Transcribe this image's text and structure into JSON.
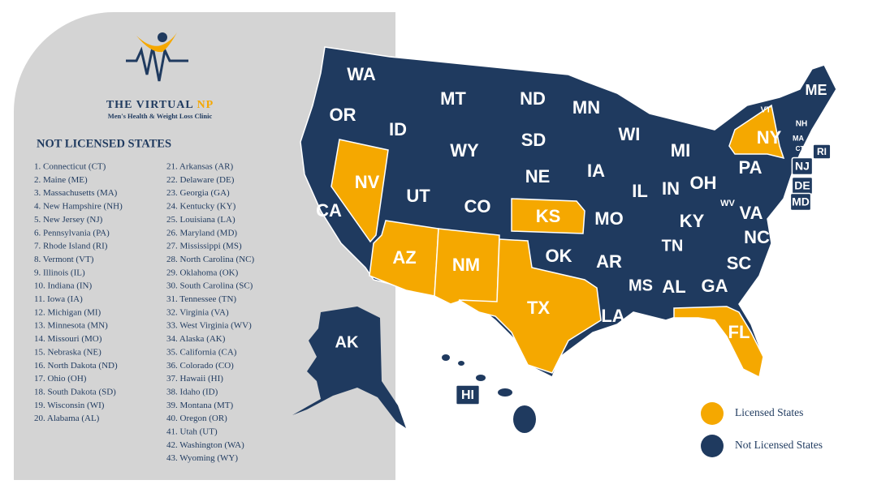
{
  "logo": {
    "title": "THE VIRTUAL",
    "title_accent": "NP",
    "subtitle": "Men's Health & Weight Loss Clinic"
  },
  "list": {
    "heading": "NOT LICENSED STATES",
    "items": [
      "1. Connecticut (CT)",
      "2. Maine (ME)",
      "3. Massachusetts (MA)",
      "4. New Hampshire (NH)",
      "5. New Jersey (NJ)",
      "6. Pennsylvania (PA)",
      "7. Rhode Island (RI)",
      "8. Vermont (VT)",
      "9. Illinois (IL)",
      "10. Indiana (IN)",
      "11. Iowa (IA)",
      "12. Michigan (MI)",
      "13. Minnesota (MN)",
      "14. Missouri (MO)",
      "15. Nebraska (NE)",
      "16. North Dakota (ND)",
      "17. Ohio (OH)",
      "18. South Dakota (SD)",
      "19. Wisconsin (WI)",
      "20. Alabama (AL)",
      "21. Arkansas (AR)",
      "22. Delaware (DE)",
      "23. Georgia (GA)",
      "24. Kentucky (KY)",
      "25. Louisiana (LA)",
      "26. Maryland (MD)",
      "27. Mississippi (MS)",
      "28. North Carolina (NC)",
      "29. Oklahoma (OK)",
      "30. South Carolina (SC)",
      "31. Tennessee (TN)",
      "32. Virginia (VA)",
      "33. West Virginia (WV)",
      "34. Alaska (AK)",
      "35. California (CA)",
      "36. Colorado (CO)",
      "37. Hawaii (HI)",
      "38. Idaho (ID)",
      "39. Montana (MT)",
      "40. Oregon (OR)",
      "41. Utah (UT)",
      "42. Washington (WA)",
      "43. Wyoming (WY)"
    ]
  },
  "map": {
    "states": [
      {
        "label": "WA",
        "licensed": false
      },
      {
        "label": "OR",
        "licensed": false
      },
      {
        "label": "CA",
        "licensed": false
      },
      {
        "label": "NV",
        "licensed": true
      },
      {
        "label": "ID",
        "licensed": false
      },
      {
        "label": "MT",
        "licensed": false
      },
      {
        "label": "WY",
        "licensed": false
      },
      {
        "label": "UT",
        "licensed": false
      },
      {
        "label": "CO",
        "licensed": false
      },
      {
        "label": "AZ",
        "licensed": true
      },
      {
        "label": "NM",
        "licensed": true
      },
      {
        "label": "ND",
        "licensed": false
      },
      {
        "label": "SD",
        "licensed": false
      },
      {
        "label": "NE",
        "licensed": false
      },
      {
        "label": "KS",
        "licensed": true
      },
      {
        "label": "OK",
        "licensed": false
      },
      {
        "label": "TX",
        "licensed": true
      },
      {
        "label": "MN",
        "licensed": false
      },
      {
        "label": "IA",
        "licensed": false
      },
      {
        "label": "MO",
        "licensed": false
      },
      {
        "label": "AR",
        "licensed": false
      },
      {
        "label": "LA",
        "licensed": false
      },
      {
        "label": "WI",
        "licensed": false
      },
      {
        "label": "IL",
        "licensed": false
      },
      {
        "label": "MI",
        "licensed": false
      },
      {
        "label": "IN",
        "licensed": false
      },
      {
        "label": "OH",
        "licensed": false
      },
      {
        "label": "KY",
        "licensed": false
      },
      {
        "label": "TN",
        "licensed": false
      },
      {
        "label": "MS",
        "licensed": false
      },
      {
        "label": "AL",
        "licensed": false
      },
      {
        "label": "GA",
        "licensed": false
      },
      {
        "label": "FL",
        "licensed": true
      },
      {
        "label": "SC",
        "licensed": false
      },
      {
        "label": "NC",
        "licensed": false
      },
      {
        "label": "VA",
        "licensed": false
      },
      {
        "label": "WV",
        "licensed": false
      },
      {
        "label": "PA",
        "licensed": false
      },
      {
        "label": "NY",
        "licensed": true
      },
      {
        "label": "VT",
        "licensed": false
      },
      {
        "label": "NH",
        "licensed": false
      },
      {
        "label": "ME",
        "licensed": false
      },
      {
        "label": "MA",
        "licensed": false
      },
      {
        "label": "CT",
        "licensed": false
      },
      {
        "label": "RI",
        "licensed": false
      },
      {
        "label": "NJ",
        "licensed": false
      },
      {
        "label": "DE",
        "licensed": false
      },
      {
        "label": "MD",
        "licensed": false
      },
      {
        "label": "AK",
        "licensed": false
      },
      {
        "label": "HI",
        "licensed": false
      }
    ]
  },
  "legend": [
    {
      "label": "Licensed States",
      "color": "#f5a800"
    },
    {
      "label": "Not Licensed States",
      "color": "#1f3a5f"
    }
  ]
}
